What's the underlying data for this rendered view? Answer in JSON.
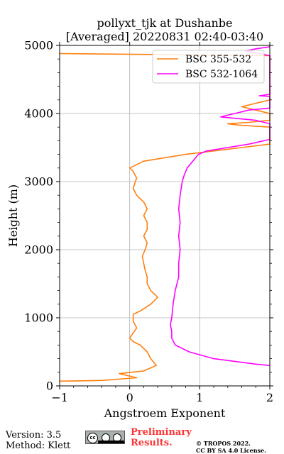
{
  "chart_data": {
    "type": "line",
    "title": "pollyxt_tjk at Dushanbe",
    "subtitle": "[Averaged] 20220831 02:40-03:40",
    "xlabel": "Angstroem Exponent",
    "ylabel": "Height (m)",
    "xlim": [
      -1,
      2
    ],
    "ylim": [
      0,
      5000
    ],
    "xticks": [
      -1,
      0,
      1,
      2
    ],
    "xtick_labels": [
      "−1",
      "0",
      "1",
      "2"
    ],
    "yticks": [
      0,
      1000,
      2000,
      3000,
      4000,
      5000
    ],
    "ytick_labels": [
      "0",
      "1000",
      "2000",
      "3000",
      "4000",
      "5000"
    ],
    "grid": true,
    "legend_position": "top-right",
    "series": [
      {
        "name": "BSC 355-532",
        "color": "#ff7f0e",
        "points": [
          [
            -1.0,
            70
          ],
          [
            -0.4,
            80
          ],
          [
            0.1,
            120
          ],
          [
            -0.15,
            180
          ],
          [
            0.2,
            220
          ],
          [
            0.38,
            300
          ],
          [
            0.3,
            400
          ],
          [
            0.25,
            500
          ],
          [
            0.15,
            600
          ],
          [
            0.05,
            650
          ],
          [
            0.0,
            700
          ],
          [
            0.05,
            780
          ],
          [
            0.1,
            850
          ],
          [
            0.05,
            950
          ],
          [
            0.05,
            1050
          ],
          [
            0.15,
            1100
          ],
          [
            0.3,
            1200
          ],
          [
            0.4,
            1300
          ],
          [
            0.3,
            1400
          ],
          [
            0.25,
            1500
          ],
          [
            0.25,
            1600
          ],
          [
            0.22,
            1700
          ],
          [
            0.2,
            1800
          ],
          [
            0.18,
            1900
          ],
          [
            0.22,
            2000
          ],
          [
            0.25,
            2100
          ],
          [
            0.2,
            2200
          ],
          [
            0.25,
            2300
          ],
          [
            0.25,
            2400
          ],
          [
            0.2,
            2500
          ],
          [
            0.25,
            2600
          ],
          [
            0.2,
            2700
          ],
          [
            0.1,
            2800
          ],
          [
            0.05,
            2900
          ],
          [
            0.08,
            3000
          ],
          [
            0.1,
            3050
          ],
          [
            0.05,
            3150
          ],
          [
            0.0,
            3200
          ],
          [
            0.2,
            3300
          ],
          [
            0.8,
            3400
          ],
          [
            1.2,
            3450
          ],
          [
            1.6,
            3500
          ],
          [
            2.0,
            3550
          ],
          [
            2.0,
            3800
          ],
          [
            1.55,
            3830
          ],
          [
            1.4,
            3850
          ],
          [
            1.7,
            3870
          ],
          [
            2.0,
            3900
          ],
          [
            2.0,
            4000
          ],
          [
            1.8,
            4050
          ],
          [
            1.6,
            4100
          ],
          [
            1.8,
            4150
          ],
          [
            2.0,
            4200
          ],
          [
            2.0,
            4850
          ],
          [
            -1.0,
            4880
          ]
        ]
      },
      {
        "name": "BSC 532-1064",
        "color": "#ff00ff",
        "points": [
          [
            2.0,
            300
          ],
          [
            1.8,
            320
          ],
          [
            1.2,
            400
          ],
          [
            0.85,
            500
          ],
          [
            0.65,
            600
          ],
          [
            0.6,
            700
          ],
          [
            0.6,
            800
          ],
          [
            0.58,
            900
          ],
          [
            0.6,
            1000
          ],
          [
            0.62,
            1200
          ],
          [
            0.65,
            1400
          ],
          [
            0.7,
            1600
          ],
          [
            0.7,
            1800
          ],
          [
            0.72,
            2000
          ],
          [
            0.7,
            2200
          ],
          [
            0.72,
            2400
          ],
          [
            0.7,
            2600
          ],
          [
            0.72,
            2800
          ],
          [
            0.75,
            3000
          ],
          [
            0.78,
            3100
          ],
          [
            0.82,
            3200
          ],
          [
            0.9,
            3300
          ],
          [
            0.98,
            3400
          ],
          [
            1.1,
            3450
          ],
          [
            1.4,
            3500
          ],
          [
            1.7,
            3550
          ],
          [
            2.0,
            3620
          ],
          [
            2.0,
            3850
          ],
          [
            1.8,
            3900
          ],
          [
            1.3,
            3950
          ],
          [
            1.5,
            4000
          ],
          [
            1.7,
            4050
          ],
          [
            2.0,
            4080
          ],
          [
            2.0,
            4250
          ],
          [
            1.85,
            4260
          ],
          [
            2.0,
            4280
          ],
          [
            2.0,
            4850
          ],
          [
            1.65,
            4920
          ],
          [
            1.8,
            4950
          ],
          [
            2.0,
            4980
          ]
        ]
      }
    ]
  },
  "footer": {
    "version": "Version: 3.5",
    "method": "Method: Klett",
    "preliminary_line1": "Preliminary",
    "preliminary_line2": "Results.",
    "copyright_line1": "© TROPOS 2022.",
    "copyright_line2": "CC BY SA 4.0 License."
  }
}
